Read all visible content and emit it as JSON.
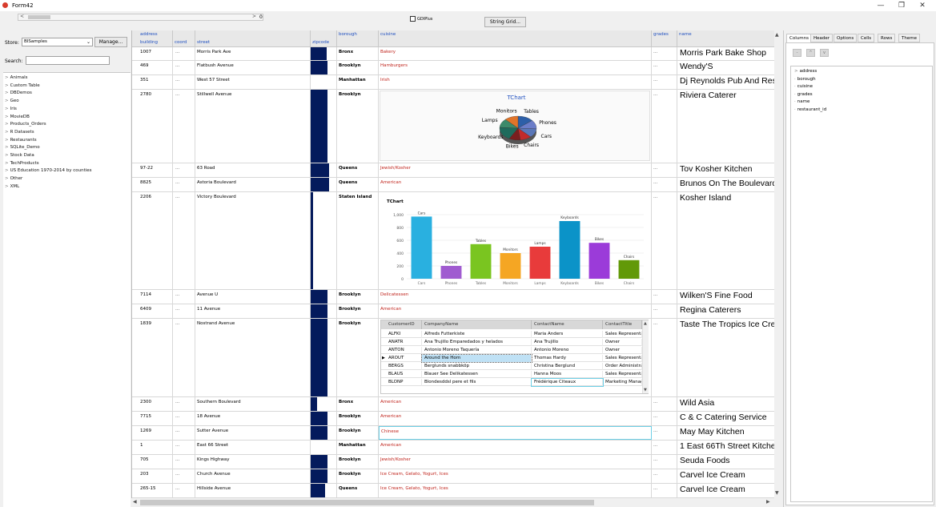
{
  "window": {
    "title": "Form42",
    "minimize": "—",
    "maximize": "❐",
    "close": "✕"
  },
  "toolbar": {
    "left_arrow": "<",
    "right_arrow": ">",
    "scroll_value": "0",
    "gdiplus_label": "GDIPlus",
    "string_grid_label": "String Grid..."
  },
  "left": {
    "store_label": "Store:",
    "store_value": "BISamples",
    "manage_label": "Manage...",
    "search_label": "Search:",
    "tree": [
      "Animals",
      "Custom Table",
      "DBDemos",
      "Geo",
      "Iris",
      "MovieDB",
      "Products_Orders",
      "R Datasets",
      "Restaurants",
      "SQLite_Demo",
      "Stock Data",
      "TechProducts",
      "US Education 1970-2014 by counties",
      "Other",
      "XML"
    ]
  },
  "columns": {
    "address": "address",
    "building": "building",
    "coord": "coord",
    "street": "street",
    "zipcode": "zipcode",
    "borough": "borough",
    "cuisine": "cuisine",
    "grades": "grades",
    "name": "name"
  },
  "rows": [
    {
      "building": "1007",
      "coord": "...",
      "street": "Morris Park Ave",
      "zip": 0.6,
      "borough": "Bronx",
      "cuisine": "Bakery",
      "grades": "...",
      "name": "Morris Park Bake Shop"
    },
    {
      "building": "469",
      "coord": "...",
      "street": "Flatbush Avenue",
      "zip": 0.65,
      "borough": "Brooklyn",
      "cuisine": "Hamburgers",
      "grades": "...",
      "name": "Wendy'S"
    },
    {
      "building": "351",
      "coord": "...",
      "street": "West   57 Street",
      "zip": 0.0,
      "borough": "Manhattan",
      "cuisine": "Irish",
      "grades": "...",
      "name": "Dj Reynolds Pub And Restaurant"
    },
    {
      "building": "2780",
      "coord": "...",
      "street": "Stillwell Avenue",
      "zip": 0.65,
      "borough": "Brooklyn",
      "cuisine": "",
      "grades": "...",
      "name": "Riviera Caterer"
    },
    {
      "building": "97-22",
      "coord": "...",
      "street": "63 Road",
      "zip": 0.7,
      "borough": "Queens",
      "cuisine": "Jewish/Kosher",
      "grades": "...",
      "name": "Tov Kosher Kitchen"
    },
    {
      "building": "8825",
      "coord": "...",
      "street": "Astoria Boulevard",
      "zip": 0.7,
      "borough": "Queens",
      "cuisine": "American",
      "grades": "...",
      "name": "Brunos On The Boulevard"
    },
    {
      "building": "2206",
      "coord": "...",
      "street": "Victory Boulevard",
      "zip": 0.1,
      "borough": "Staten Island",
      "cuisine": "",
      "grades": "...",
      "name": "Kosher Island"
    },
    {
      "building": "7114",
      "coord": "...",
      "street": "Avenue U",
      "zip": 0.65,
      "borough": "Brooklyn",
      "cuisine": "Delicatessen",
      "grades": "...",
      "name": "Wilken'S Fine Food"
    },
    {
      "building": "6409",
      "coord": "...",
      "street": "11 Avenue",
      "zip": 0.65,
      "borough": "Brooklyn",
      "cuisine": "American",
      "grades": "...",
      "name": "Regina Caterers"
    },
    {
      "building": "1839",
      "coord": "...",
      "street": "Nostrand Avenue",
      "zip": 0.65,
      "borough": "Brooklyn",
      "cuisine": "",
      "grades": "...",
      "name": "Taste The Tropics Ice Cream"
    },
    {
      "building": "2300",
      "coord": "...",
      "street": "Southern Boulevard",
      "zip": 0.25,
      "borough": "Bronx",
      "cuisine": "American",
      "grades": "...",
      "name": "Wild Asia"
    },
    {
      "building": "7715",
      "coord": "...",
      "street": "18 Avenue",
      "zip": 0.65,
      "borough": "Brooklyn",
      "cuisine": "American",
      "grades": "...",
      "name": "C & C Catering Service"
    },
    {
      "building": "1269",
      "coord": "...",
      "street": "Sutter Avenue",
      "zip": 0.65,
      "borough": "Brooklyn",
      "cuisine": "Chinese",
      "grades": "...",
      "name": "May May Kitchen"
    },
    {
      "building": "1",
      "coord": "...",
      "street": "East   66 Street",
      "zip": 0.0,
      "borough": "Manhattan",
      "cuisine": "American",
      "grades": "...",
      "name": "1 East 66Th Street Kitchen"
    },
    {
      "building": "705",
      "coord": "...",
      "street": "Kings Highway",
      "zip": 0.65,
      "borough": "Brooklyn",
      "cuisine": "Jewish/Kosher",
      "grades": "...",
      "name": "Seuda Foods"
    },
    {
      "building": "203",
      "coord": "...",
      "street": "Church Avenue",
      "zip": 0.65,
      "borough": "Brooklyn",
      "cuisine": "Ice Cream, Gelato, Yogurt, Ices",
      "grades": "...",
      "name": "Carvel Ice Cream"
    },
    {
      "building": "265-15",
      "coord": "...",
      "street": "Hillside Avenue",
      "zip": 0.55,
      "borough": "Queens",
      "cuisine": "Ice Cream, Gelato, Yogurt, Ices",
      "grades": "...",
      "name": "Carvel Ice Cream"
    }
  ],
  "pie_chart": {
    "title": "TChart",
    "slices": [
      {
        "label": "Tables",
        "value": 14,
        "color": "#2d5fa8"
      },
      {
        "label": "Phones",
        "value": 12,
        "color": "#6b7dc9"
      },
      {
        "label": "Cars",
        "value": 12,
        "color": "#5a77b8"
      },
      {
        "label": "Chairs",
        "value": 10,
        "color": "#c22b2b"
      },
      {
        "label": "Bikes",
        "value": 10,
        "color": "#7a1f1f"
      },
      {
        "label": "Keyboards",
        "value": 18,
        "color": "#1f6b5c"
      },
      {
        "label": "Lamps",
        "value": 12,
        "color": "#3c8a6a"
      },
      {
        "label": "Monitors",
        "value": 12,
        "color": "#e0742a"
      }
    ]
  },
  "chart_data": {
    "type": "bar",
    "title": "TChart",
    "categories": [
      "Cars",
      "Phones",
      "Tables",
      "Monitors",
      "Lamps",
      "Keyboards",
      "Bikes",
      "Chairs"
    ],
    "values": [
      970,
      200,
      540,
      400,
      500,
      900,
      560,
      290
    ],
    "colors": [
      "#29b0e0",
      "#a05bd0",
      "#7ac520",
      "#f5a623",
      "#e83b3b",
      "#0b93c8",
      "#9b3bd9",
      "#629908"
    ],
    "yticks": [
      "0",
      "200",
      "400",
      "600",
      "800",
      "1,000"
    ],
    "ylim": [
      0,
      1000
    ],
    "grid": true
  },
  "sub_grid": {
    "headers": [
      "CustomerID",
      "CompanyName",
      "ContactName",
      "ContactTitle"
    ],
    "rows": [
      [
        "ALFKI",
        "Alfreds Futterkiste",
        "Maria Anders",
        "Sales Representative"
      ],
      [
        "ANATR",
        "Ana Trujillo Emparedados y helados",
        "Ana Trujillo",
        "Owner"
      ],
      [
        "ANTON",
        "Antonio Moreno Taquería",
        "Antonio Moreno",
        "Owner"
      ],
      [
        "AROUT",
        "Around the Horn",
        "Thomas Hardy",
        "Sales Representative"
      ],
      [
        "BERGS",
        "Berglunds snabbköp",
        "Christina Berglund",
        "Order Administrator"
      ],
      [
        "BLAUS",
        "Blauer See Delikatessen",
        "Hanna Moos",
        "Sales Representative"
      ],
      [
        "BLONP",
        "Blondesddsl pere et fils",
        "Frédérique Citeaux",
        "Marketing Manager"
      ]
    ],
    "current_marker": "▶"
  },
  "right": {
    "tabs": [
      "Columns",
      "Header",
      "Options",
      "Cells",
      "Rows",
      "Theme"
    ],
    "buttons": [
      "-",
      "^",
      "v"
    ],
    "tree": [
      "address",
      "borough",
      "cuisine",
      "grades",
      "name",
      "restaurant_id"
    ]
  }
}
